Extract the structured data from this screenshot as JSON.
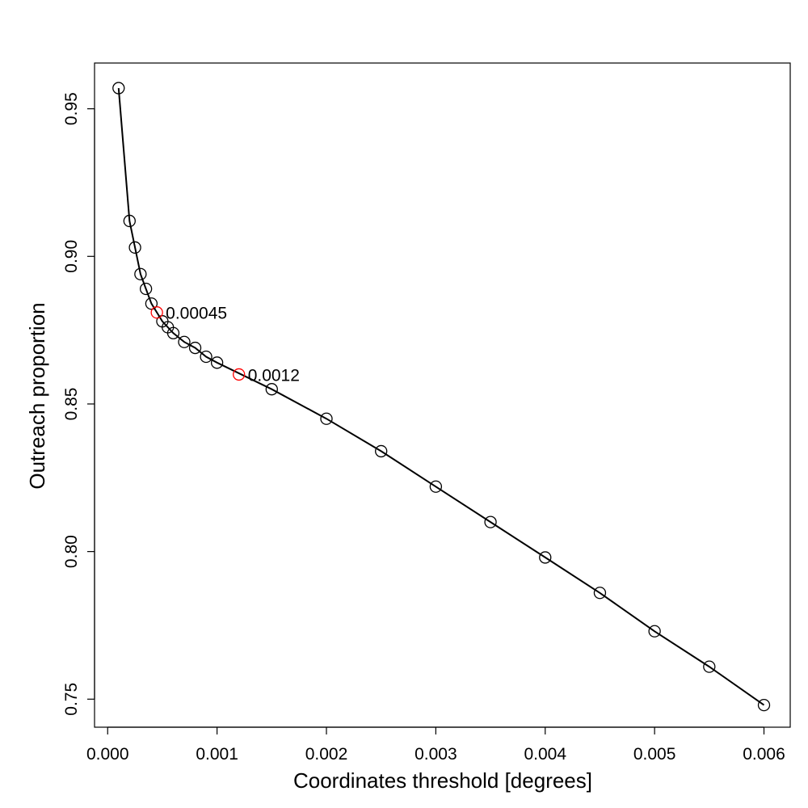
{
  "chart_data": {
    "type": "scatter",
    "title": "",
    "xlabel": "Coordinates threshold [degrees]",
    "ylabel": "Outreach proportion",
    "xlim": [
      -0.00012,
      0.00624
    ],
    "ylim": [
      0.7405,
      0.9655
    ],
    "x_ticks": [
      0.0,
      0.001,
      0.002,
      0.003,
      0.004,
      0.005,
      0.006
    ],
    "x_tick_labels": [
      "0.000",
      "0.001",
      "0.002",
      "0.003",
      "0.004",
      "0.005",
      "0.006"
    ],
    "y_ticks": [
      0.75,
      0.8,
      0.85,
      0.9,
      0.95
    ],
    "y_tick_labels": [
      "0.75",
      "0.80",
      "0.85",
      "0.90",
      "0.95"
    ],
    "grid": false,
    "legend": "none",
    "line_color": "#000000",
    "series": [
      {
        "marker": "open-circle",
        "color": "#000000",
        "connected": true,
        "points": [
          {
            "x": 0.0001,
            "y": 0.957
          },
          {
            "x": 0.0002,
            "y": 0.912
          },
          {
            "x": 0.00025,
            "y": 0.903
          },
          {
            "x": 0.0003,
            "y": 0.894
          },
          {
            "x": 0.00035,
            "y": 0.889
          },
          {
            "x": 0.0004,
            "y": 0.884
          },
          {
            "x": 0.0005,
            "y": 0.878
          },
          {
            "x": 0.00055,
            "y": 0.876
          },
          {
            "x": 0.0006,
            "y": 0.874
          },
          {
            "x": 0.0007,
            "y": 0.871
          },
          {
            "x": 0.0008,
            "y": 0.869
          },
          {
            "x": 0.0009,
            "y": 0.866
          },
          {
            "x": 0.001,
            "y": 0.864
          },
          {
            "x": 0.0015,
            "y": 0.855
          },
          {
            "x": 0.002,
            "y": 0.845
          },
          {
            "x": 0.0025,
            "y": 0.834
          },
          {
            "x": 0.003,
            "y": 0.822
          },
          {
            "x": 0.0035,
            "y": 0.81
          },
          {
            "x": 0.004,
            "y": 0.798
          },
          {
            "x": 0.0045,
            "y": 0.786
          },
          {
            "x": 0.005,
            "y": 0.773
          },
          {
            "x": 0.0055,
            "y": 0.761
          },
          {
            "x": 0.006,
            "y": 0.748
          }
        ]
      },
      {
        "marker": "open-circle",
        "color": "#ff0000",
        "connected": false,
        "points": [
          {
            "x": 0.00045,
            "y": 0.881,
            "label": "0.00045"
          },
          {
            "x": 0.0012,
            "y": 0.86,
            "label": "0.0012"
          }
        ]
      }
    ]
  }
}
